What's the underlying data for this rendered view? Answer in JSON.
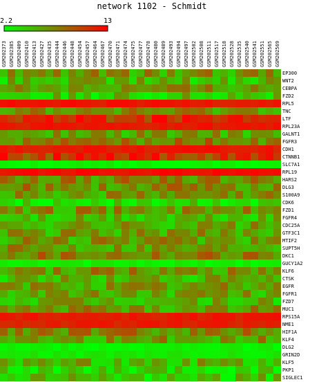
{
  "chart_data": {
    "type": "heatmap",
    "title": "network 1102 - Schmidt",
    "colorscale": {
      "min_label": "2.2",
      "max_label": "13",
      "min": 2.2,
      "max": 13,
      "low_color": "#00ff00",
      "high_color": "#ff0000"
    },
    "columns": [
      "GSM202373",
      "GSM202385",
      "GSM202409",
      "GSM202410",
      "GSM202413",
      "GSM202427",
      "GSM202435",
      "GSM202444",
      "GSM202446",
      "GSM202448",
      "GSM202454",
      "GSM202457",
      "GSM202464",
      "GSM202467",
      "GSM202470",
      "GSM202471",
      "GSM202474",
      "GSM202475",
      "GSM202477",
      "GSM202478",
      "GSM202480",
      "GSM202489",
      "GSM202493",
      "GSM202494",
      "GSM202497",
      "GSM202502",
      "GSM202508",
      "GSM202511",
      "GSM202517",
      "GSM202518",
      "GSM202528",
      "GSM202535",
      "GSM202540",
      "GSM202541",
      "GSM202551",
      "GSM202565",
      "GSM202569"
    ],
    "rows": [
      "EP300",
      "WNT2",
      "CEBPA",
      "FZD2",
      "RPL5",
      "TNC",
      "LTF",
      "RPL23A",
      "GALNT1",
      "FGFR3",
      "CDH1",
      "CTNNB1",
      "SLC7A1",
      "RPL19",
      "HARS2",
      "DLG3",
      "S100A9",
      "CDK6",
      "FZD1",
      "FGFR4",
      "CDC25A",
      "GTF3C1",
      "MTIF2",
      "SUPT5H",
      "DKC1",
      "GUCY1A2",
      "KLF6",
      "CTSK",
      "EGFR",
      "FGFR1",
      "FZD7",
      "MUC1",
      "RPS15A",
      "NME1",
      "HIF1A",
      "KLF4",
      "DLG2",
      "GRIN2D",
      "KLF5",
      "PKP1",
      "SIGLEC1"
    ],
    "row_levels": [
      0.4,
      0.28,
      0.42,
      0.22,
      0.92,
      0.45,
      0.82,
      0.9,
      0.38,
      0.52,
      0.9,
      0.78,
      0.04,
      0.96,
      0.48,
      0.46,
      0.4,
      0.14,
      0.42,
      0.26,
      0.36,
      0.38,
      0.4,
      0.42,
      0.55,
      0.06,
      0.44,
      0.3,
      0.38,
      0.36,
      0.3,
      0.42,
      0.9,
      0.88,
      0.5,
      0.4,
      0.06,
      0.08,
      0.3,
      0.12,
      0.22
    ]
  }
}
